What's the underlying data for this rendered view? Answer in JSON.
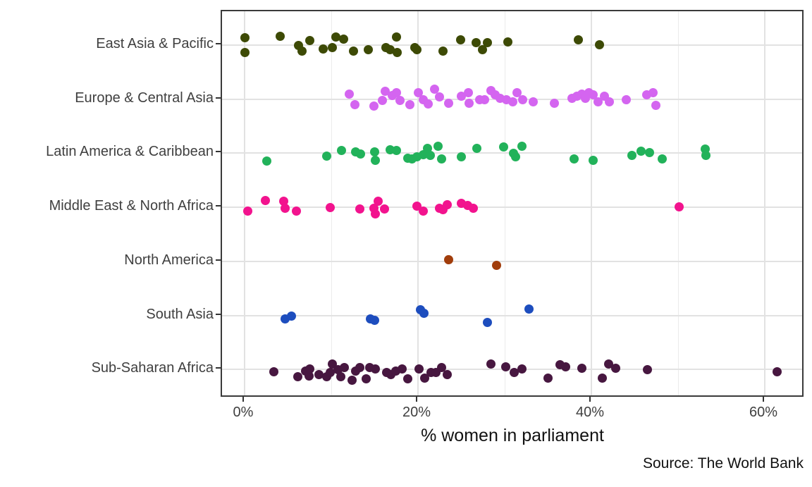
{
  "chart": {
    "xlabel": "% women in parliament",
    "caption": "Source: The World Bank"
  },
  "chart_data": {
    "type": "scatter",
    "variant": "jittered-strip-plot",
    "title": "",
    "xlabel": "% women in parliament",
    "ylabel": "",
    "caption": "Source: The World Bank",
    "grid": true,
    "legend_position": "none",
    "x_unit": "percent",
    "xlim": [
      -2.6,
      64.6
    ],
    "x_major_ticks": [
      0,
      20,
      40,
      60
    ],
    "x_tick_labels": [
      "0%",
      "20%",
      "40%",
      "60%"
    ],
    "x_minor_gridlines": [
      10,
      30,
      50
    ],
    "categories": [
      "East Asia & Pacific",
      "Europe & Central Asia",
      "Latin America & Caribbean",
      "Middle East & North Africa",
      "North America",
      "South Asia",
      "Sub-Saharan Africa"
    ],
    "point_format": "[percent_women, vertical_jitter_px]",
    "series": [
      {
        "name": "East Asia & Pacific",
        "color": "#3d4a05",
        "points": [
          [
            0,
            -11
          ],
          [
            0,
            10
          ],
          [
            4.1,
            -13
          ],
          [
            6.2,
            0
          ],
          [
            6.6,
            8
          ],
          [
            7.5,
            -7
          ],
          [
            9.1,
            5
          ],
          [
            10.1,
            3
          ],
          [
            10.5,
            -12
          ],
          [
            11.4,
            -9
          ],
          [
            12.6,
            8
          ],
          [
            14.3,
            6
          ],
          [
            16.3,
            3
          ],
          [
            16.8,
            6
          ],
          [
            17.5,
            -12
          ],
          [
            17.6,
            10
          ],
          [
            19.6,
            3
          ],
          [
            19.9,
            6
          ],
          [
            22.9,
            8
          ],
          [
            24.9,
            -8
          ],
          [
            26.7,
            -4
          ],
          [
            27.4,
            6
          ],
          [
            28,
            -4
          ],
          [
            30.4,
            -5
          ],
          [
            38.5,
            -8
          ],
          [
            40.9,
            -1
          ]
        ]
      },
      {
        "name": "Europe & Central Asia",
        "color": "#d465f0",
        "points": [
          [
            12.1,
            -7
          ],
          [
            12.7,
            8
          ],
          [
            14.9,
            10
          ],
          [
            15.9,
            2
          ],
          [
            16.2,
            -11
          ],
          [
            17,
            -5
          ],
          [
            17.5,
            -9
          ],
          [
            17.9,
            2
          ],
          [
            19.1,
            8
          ],
          [
            20,
            -9
          ],
          [
            20.6,
            1
          ],
          [
            21.2,
            7
          ],
          [
            21.9,
            -14
          ],
          [
            22.5,
            -3
          ],
          [
            23.5,
            6
          ],
          [
            25,
            -4
          ],
          [
            25.8,
            -9
          ],
          [
            25.9,
            6
          ],
          [
            27.1,
            1
          ],
          [
            27.7,
            1
          ],
          [
            28.4,
            -12
          ],
          [
            28.9,
            -6
          ],
          [
            29.5,
            -1
          ],
          [
            30.2,
            1
          ],
          [
            30.9,
            4
          ],
          [
            31.4,
            -9
          ],
          [
            32.1,
            1
          ],
          [
            33.3,
            4
          ],
          [
            35.7,
            6
          ],
          [
            37.8,
            -1
          ],
          [
            38.3,
            -4
          ],
          [
            38.9,
            -7
          ],
          [
            39.3,
            -1
          ],
          [
            39.7,
            -9
          ],
          [
            40.2,
            -6
          ],
          [
            40.8,
            4
          ],
          [
            41.5,
            -4
          ],
          [
            42.1,
            4
          ],
          [
            44,
            1
          ],
          [
            46.4,
            -6
          ],
          [
            47.1,
            -9
          ],
          [
            47.4,
            9
          ]
        ]
      },
      {
        "name": "Latin America & Caribbean",
        "color": "#22b25a",
        "points": [
          [
            2.6,
            11
          ],
          [
            9.5,
            4
          ],
          [
            11.2,
            -4
          ],
          [
            12.8,
            -2
          ],
          [
            13.4,
            1
          ],
          [
            15,
            -2
          ],
          [
            15.1,
            10
          ],
          [
            16.8,
            -5
          ],
          [
            17.5,
            -4
          ],
          [
            18.8,
            7
          ],
          [
            19.3,
            8
          ],
          [
            19.9,
            5
          ],
          [
            20.6,
            2
          ],
          [
            21.1,
            -7
          ],
          [
            21.4,
            3
          ],
          [
            22.3,
            -10
          ],
          [
            22.7,
            8
          ],
          [
            25,
            5
          ],
          [
            26.8,
            -7
          ],
          [
            29.9,
            -9
          ],
          [
            31,
            0
          ],
          [
            31.3,
            5
          ],
          [
            32,
            -10
          ],
          [
            38,
            8
          ],
          [
            40.2,
            10
          ],
          [
            44.7,
            3
          ],
          [
            45.7,
            -3
          ],
          [
            46.7,
            -1
          ],
          [
            48.2,
            8
          ],
          [
            53.1,
            -6
          ],
          [
            53.2,
            3
          ]
        ]
      },
      {
        "name": "Middle East & North Africa",
        "color": "#f2138e",
        "points": [
          [
            0.4,
            5
          ],
          [
            2.4,
            -10
          ],
          [
            4.5,
            -9
          ],
          [
            4.7,
            1
          ],
          [
            6,
            5
          ],
          [
            9.9,
            0
          ],
          [
            13.3,
            2
          ],
          [
            14.9,
            1
          ],
          [
            15.1,
            9
          ],
          [
            15.4,
            -9
          ],
          [
            16.1,
            2
          ],
          [
            19.9,
            -2
          ],
          [
            20.6,
            5
          ],
          [
            22.5,
            1
          ],
          [
            22.9,
            3
          ],
          [
            23.4,
            -4
          ],
          [
            25,
            -6
          ],
          [
            25.7,
            -3
          ],
          [
            26.4,
            1
          ],
          [
            50.1,
            -1
          ]
        ]
      },
      {
        "name": "North America",
        "color": "#a13d0b",
        "points": [
          [
            23.5,
            -2
          ],
          [
            29.1,
            6
          ]
        ]
      },
      {
        "name": "South Asia",
        "color": "#1d4dbe",
        "points": [
          [
            4.7,
            5
          ],
          [
            5.4,
            1
          ],
          [
            14.5,
            5
          ],
          [
            15,
            7
          ],
          [
            20.3,
            -8
          ],
          [
            20.7,
            -3
          ],
          [
            28,
            10
          ],
          [
            32.8,
            -9
          ]
        ]
      },
      {
        "name": "Sub-Saharan Africa",
        "color": "#471740",
        "points": [
          [
            3.4,
            3
          ],
          [
            6.1,
            10
          ],
          [
            7,
            2
          ],
          [
            7.4,
            9
          ],
          [
            7.5,
            -1
          ],
          [
            8.6,
            7
          ],
          [
            9.5,
            10
          ],
          [
            9.9,
            4
          ],
          [
            10.1,
            -8
          ],
          [
            10.8,
            0
          ],
          [
            11.1,
            10
          ],
          [
            11.5,
            -3
          ],
          [
            12.4,
            15
          ],
          [
            12.8,
            2
          ],
          [
            13.3,
            -3
          ],
          [
            14,
            13
          ],
          [
            14.4,
            -3
          ],
          [
            15.1,
            -1
          ],
          [
            16.4,
            4
          ],
          [
            16.9,
            7
          ],
          [
            17.4,
            2
          ],
          [
            18.2,
            -1
          ],
          [
            18.8,
            13
          ],
          [
            20.1,
            -1
          ],
          [
            20.8,
            12
          ],
          [
            21.5,
            4
          ],
          [
            22.1,
            4
          ],
          [
            22.7,
            -3
          ],
          [
            23.4,
            7
          ],
          [
            28.4,
            -8
          ],
          [
            30.1,
            -4
          ],
          [
            31.1,
            4
          ],
          [
            32,
            -1
          ],
          [
            35,
            12
          ],
          [
            36.4,
            -7
          ],
          [
            37,
            -4
          ],
          [
            38.9,
            -2
          ],
          [
            41.3,
            12
          ],
          [
            42,
            -8
          ],
          [
            42.8,
            -2
          ],
          [
            46.5,
            0
          ],
          [
            61.4,
            3
          ]
        ]
      }
    ]
  }
}
